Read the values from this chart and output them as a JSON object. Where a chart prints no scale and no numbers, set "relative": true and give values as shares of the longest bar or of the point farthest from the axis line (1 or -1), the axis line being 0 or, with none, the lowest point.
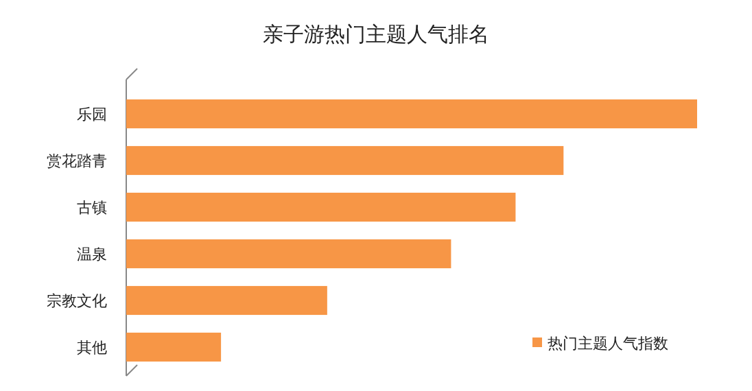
{
  "chart_data": {
    "type": "bar",
    "orientation": "horizontal",
    "relative": true,
    "title": "亲子游热门主题人气排名",
    "categories": [
      "乐园",
      "赏花踏青",
      "古镇",
      "温泉",
      "宗教文化",
      "其他"
    ],
    "series": [
      {
        "name": "热门主题人气指数",
        "color": "#f79646",
        "values": [
          1,
          0.766,
          0.682,
          0.569,
          0.352,
          0.166
        ]
      }
    ],
    "legend": "bottom right"
  }
}
